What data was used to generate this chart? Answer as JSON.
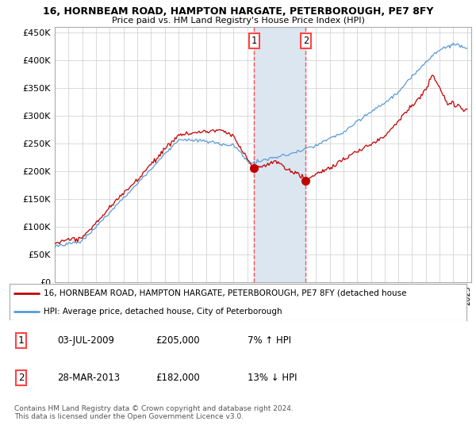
{
  "title1": "16, HORNBEAM ROAD, HAMPTON HARGATE, PETERBOROUGH, PE7 8FY",
  "title2": "Price paid vs. HM Land Registry's House Price Index (HPI)",
  "ylim": [
    0,
    460000
  ],
  "yticks": [
    0,
    50000,
    100000,
    150000,
    200000,
    250000,
    300000,
    350000,
    400000,
    450000
  ],
  "ytick_labels": [
    "£0",
    "£50K",
    "£100K",
    "£150K",
    "£200K",
    "£250K",
    "£300K",
    "£350K",
    "£400K",
    "£450K"
  ],
  "year_start": 1995,
  "year_end": 2025,
  "transaction1_date": 2009.5,
  "transaction1_price": 205000,
  "transaction1_label": "1",
  "transaction2_date": 2013.25,
  "transaction2_price": 182000,
  "transaction2_label": "2",
  "hpi_color": "#5b9bd5",
  "price_color": "#c00000",
  "shading_color": "#dce6f1",
  "vline_color": "#ff4444",
  "legend1_text": "16, HORNBEAM ROAD, HAMPTON HARGATE, PETERBOROUGH, PE7 8FY (detached house",
  "legend2_text": "HPI: Average price, detached house, City of Peterborough",
  "table_row1": [
    "1",
    "03-JUL-2009",
    "£205,000",
    "7% ↑ HPI"
  ],
  "table_row2": [
    "2",
    "28-MAR-2013",
    "£182,000",
    "13% ↓ HPI"
  ],
  "footnote": "Contains HM Land Registry data © Crown copyright and database right 2024.\nThis data is licensed under the Open Government Licence v3.0.",
  "bg_color": "#ffffff"
}
